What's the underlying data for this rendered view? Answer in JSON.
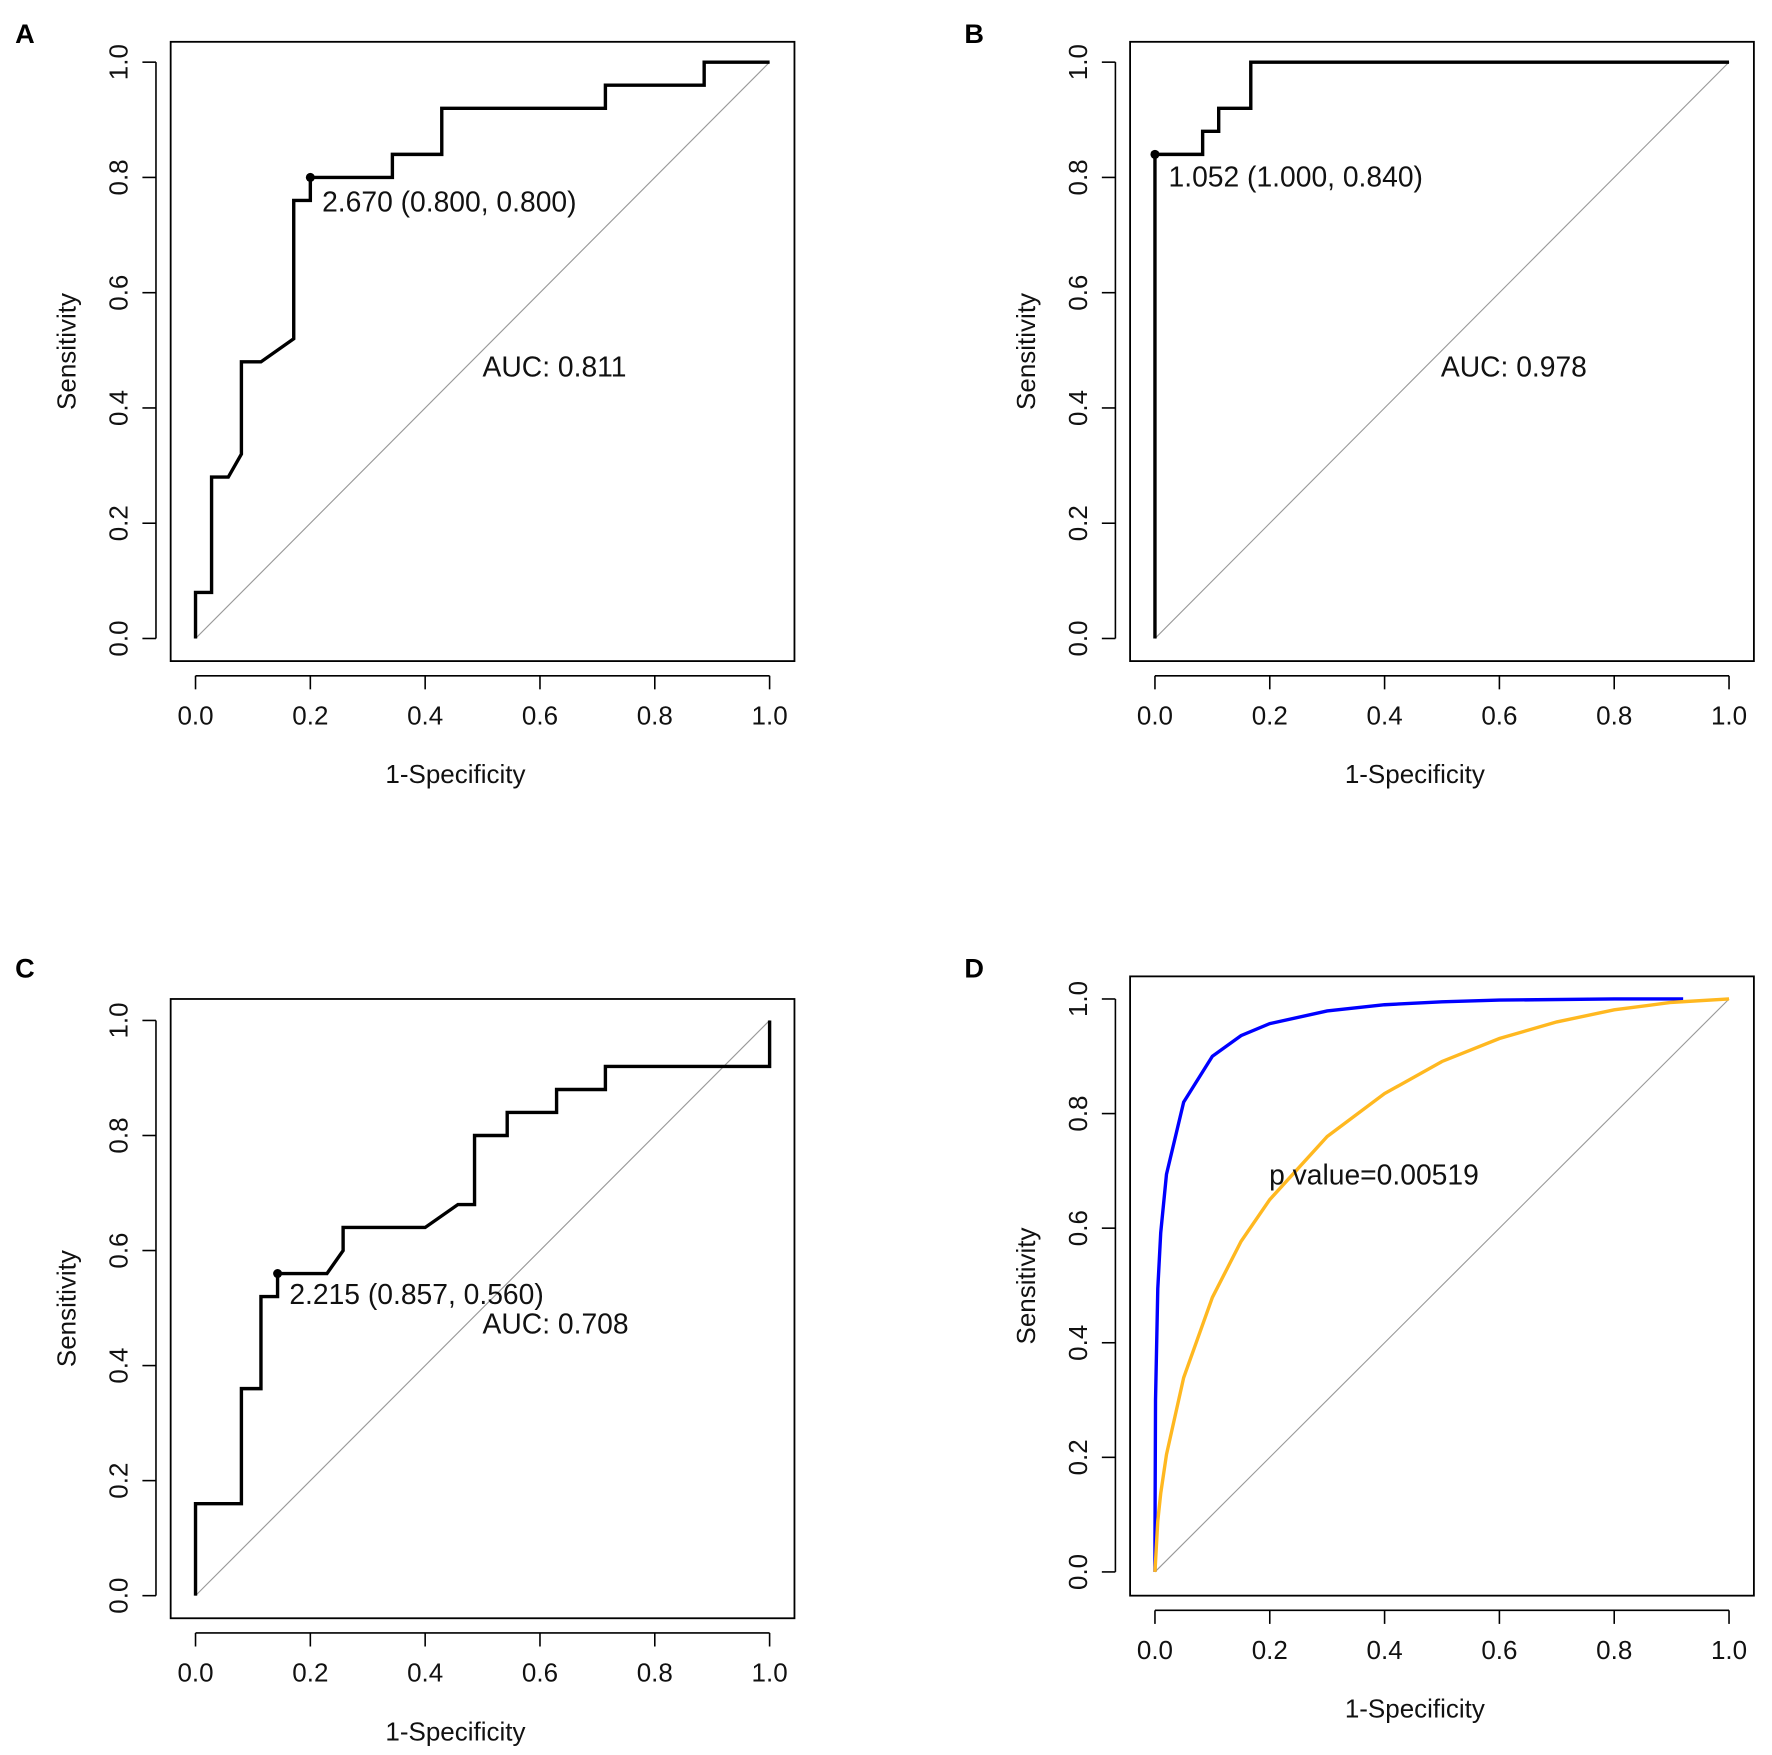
{
  "chart_data": [
    {
      "panel_label": "A",
      "type": "line",
      "xlabel": "1-Specificity",
      "ylabel": "Sensitivity",
      "xlim": [
        0,
        1
      ],
      "ylim": [
        0,
        1
      ],
      "xticks": [
        "0.0",
        "0.2",
        "0.4",
        "0.6",
        "0.8",
        "1.0"
      ],
      "yticks": [
        "0.0",
        "0.2",
        "0.4",
        "0.6",
        "0.8",
        "1.0"
      ],
      "reference_line": "diagonal",
      "series": [
        {
          "color": "#000000",
          "x": [
            0,
            0,
            0.028,
            0.028,
            0.057,
            0.08,
            0.08,
            0.114,
            0.171,
            0.171,
            0.2,
            0.2,
            0.343,
            0.343,
            0.429,
            0.429,
            0.714,
            0.714,
            0.886,
            0.886,
            1
          ],
          "y": [
            0,
            0.08,
            0.08,
            0.28,
            0.28,
            0.32,
            0.48,
            0.48,
            0.52,
            0.76,
            0.76,
            0.8,
            0.8,
            0.84,
            0.84,
            0.92,
            0.92,
            0.96,
            0.96,
            1,
            1
          ]
        }
      ],
      "best_point": {
        "x": 0.2,
        "y": 0.8,
        "label": "2.670 (0.800, 0.800)"
      },
      "auc_label": "AUC: 0.811"
    },
    {
      "panel_label": "B",
      "type": "line",
      "xlabel": "1-Specificity",
      "ylabel": "Sensitivity",
      "xlim": [
        0,
        1
      ],
      "ylim": [
        0,
        1
      ],
      "xticks": [
        "0.0",
        "0.2",
        "0.4",
        "0.6",
        "0.8",
        "1.0"
      ],
      "yticks": [
        "0.0",
        "0.2",
        "0.4",
        "0.6",
        "0.8",
        "1.0"
      ],
      "reference_line": "diagonal",
      "series": [
        {
          "color": "#000000",
          "x": [
            0,
            0,
            0.083,
            0.083,
            0.111,
            0.111,
            0.167,
            0.167,
            1
          ],
          "y": [
            0,
            0.84,
            0.84,
            0.88,
            0.88,
            0.92,
            0.92,
            1,
            1
          ]
        }
      ],
      "best_point": {
        "x": 0,
        "y": 0.84,
        "label": "1.052 (1.000, 0.840)"
      },
      "auc_label": "AUC: 0.978"
    },
    {
      "panel_label": "C",
      "type": "line",
      "xlabel": "1-Specificity",
      "ylabel": "Sensitivity",
      "xlim": [
        0,
        1
      ],
      "ylim": [
        0,
        1
      ],
      "xticks": [
        "0.0",
        "0.2",
        "0.4",
        "0.6",
        "0.8",
        "1.0"
      ],
      "yticks": [
        "0.0",
        "0.2",
        "0.4",
        "0.6",
        "0.8",
        "1.0"
      ],
      "reference_line": "diagonal",
      "series": [
        {
          "color": "#000000",
          "x": [
            0,
            0,
            0.08,
            0.08,
            0.114,
            0.114,
            0.143,
            0.143,
            0.229,
            0.257,
            0.257,
            0.4,
            0.457,
            0.486,
            0.486,
            0.543,
            0.543,
            0.629,
            0.629,
            0.714,
            0.714,
            1,
            1
          ],
          "y": [
            0,
            0.16,
            0.16,
            0.36,
            0.36,
            0.52,
            0.52,
            0.56,
            0.56,
            0.6,
            0.64,
            0.64,
            0.68,
            0.68,
            0.8,
            0.8,
            0.84,
            0.84,
            0.88,
            0.88,
            0.92,
            0.92,
            1
          ]
        }
      ],
      "best_point": {
        "x": 0.143,
        "y": 0.56,
        "label": "2.215 (0.857, 0.560)"
      },
      "auc_label": "AUC: 0.708"
    },
    {
      "panel_label": "D",
      "type": "line",
      "xlabel": "1-Specificity",
      "ylabel": "Sensitivity",
      "xlim": [
        0,
        1
      ],
      "ylim": [
        0,
        1
      ],
      "xticks": [
        "0.0",
        "0.2",
        "0.4",
        "0.6",
        "0.8",
        "1.0"
      ],
      "yticks": [
        "0.0",
        "0.2",
        "0.4",
        "0.6",
        "0.8",
        "1.0"
      ],
      "reference_line": "diagonal",
      "series": [
        {
          "color": "#0000ff",
          "x": [
            0,
            0,
            0.001,
            0.005,
            0.01,
            0.02,
            0.05,
            0.1,
            0.15,
            0.2,
            0.3,
            0.4,
            0.5,
            0.6,
            0.8,
            0.92
          ],
          "y": [
            0,
            0.05,
            0.3,
            0.494,
            0.592,
            0.694,
            0.82,
            0.9,
            0.936,
            0.957,
            0.979,
            0.99,
            0.995,
            0.998,
            1,
            1
          ]
        },
        {
          "color": "#ffb820",
          "x": [
            0,
            0.005,
            0.01,
            0.02,
            0.05,
            0.1,
            0.15,
            0.2,
            0.3,
            0.4,
            0.5,
            0.6,
            0.7,
            0.8,
            0.9,
            1
          ],
          "y": [
            0,
            0.089,
            0.137,
            0.205,
            0.339,
            0.479,
            0.577,
            0.65,
            0.76,
            0.835,
            0.891,
            0.931,
            0.96,
            0.981,
            0.994,
            1
          ]
        }
      ],
      "annotation": "p value=0.00519"
    }
  ]
}
